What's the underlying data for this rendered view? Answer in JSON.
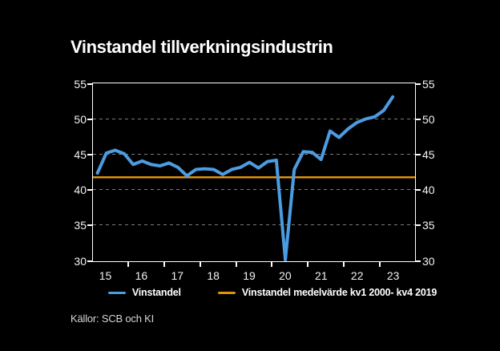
{
  "title": "Vinstandel tillverkningsindustrin",
  "source": "Källor: SCB och KI",
  "colors": {
    "background": "#000000",
    "line_blue": "#4c9ce2",
    "line_orange": "#e0920f",
    "grid": "#7e7e7e",
    "axis": "#ffffff",
    "text": "#f2f2f2"
  },
  "legend": [
    {
      "label": "Vinstandel",
      "color": "#4c9ce2"
    },
    {
      "label": "Vinstandel medelvärde kv1 2000- kv4 2019",
      "color": "#e0920f"
    }
  ],
  "chart_data": {
    "type": "line",
    "title": "Vinstandel tillverkningsindustrin",
    "frequency": "quarterly",
    "x_start": "2015 kv1",
    "x_end": "2023 kv2",
    "x_tick_labels": [
      "15",
      "16",
      "17",
      "18",
      "19",
      "20",
      "21",
      "22",
      "23"
    ],
    "y_ticks": [
      55,
      50,
      45,
      40,
      35,
      30
    ],
    "ylim": [
      30,
      55
    ],
    "grid": "horizontal-dashed",
    "legend_position": "bottom-center",
    "series": [
      {
        "name": "Vinstandel",
        "color": "#4c9ce2",
        "values": [
          42.4,
          45.2,
          45.6,
          45.1,
          43.6,
          44.1,
          43.6,
          43.4,
          43.8,
          43.2,
          42.0,
          42.9,
          43.0,
          42.9,
          42.2,
          42.9,
          43.2,
          43.9,
          43.1,
          44.0,
          44.2,
          30.2,
          42.9,
          45.4,
          45.3,
          44.3,
          48.3,
          47.4,
          48.6,
          49.5,
          50.0,
          50.3,
          51.2,
          53.1
        ]
      },
      {
        "name": "Vinstandel medelvärde kv1 2000- kv4 2019",
        "color": "#e0920f",
        "style": "horizontal-mean-line",
        "value": 41.8
      }
    ]
  }
}
